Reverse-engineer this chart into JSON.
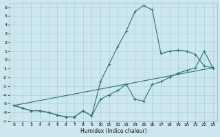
{
  "xlabel": "Humidex (Indice chaleur)",
  "bg_color": "#cce8ee",
  "line_color": "#2d6e6a",
  "grid_color": "#a8cfd6",
  "xlim": [
    -0.5,
    23.5
  ],
  "ylim": [
    -7,
    6.5
  ],
  "ytick_vals": [
    -7,
    -6,
    -5,
    -4,
    -3,
    -2,
    -1,
    0,
    1,
    2,
    3,
    4,
    5,
    6
  ],
  "ytick_labels": [
    "-7",
    "-6",
    "-5",
    "-4",
    "-3",
    "-2",
    "-1",
    "0",
    "1",
    "2",
    "3",
    "4",
    "5",
    "6"
  ],
  "xtick_vals": [
    0,
    1,
    2,
    3,
    4,
    5,
    6,
    7,
    8,
    9,
    10,
    11,
    12,
    13,
    14,
    15,
    16,
    17,
    18,
    19,
    20,
    21,
    22,
    23
  ],
  "line1_x": [
    0,
    1,
    2,
    3,
    4,
    5,
    6,
    7,
    8,
    9,
    10,
    11,
    12,
    13,
    14,
    15,
    16,
    17,
    18,
    19,
    20,
    21,
    22,
    23
  ],
  "line1_y": [
    -5.2,
    -5.5,
    -5.8,
    -5.8,
    -6.0,
    -6.3,
    -6.5,
    -6.5,
    -5.8,
    -6.4,
    -2.5,
    -0.5,
    1.5,
    3.3,
    5.5,
    6.2,
    5.7,
    0.7,
    1.0,
    1.1,
    1.0,
    0.6,
    -0.7,
    -0.9
  ],
  "line2_x": [
    0,
    1,
    2,
    3,
    4,
    5,
    6,
    7,
    8,
    9,
    10,
    11,
    12,
    13,
    14,
    15,
    16,
    17,
    18,
    19,
    20,
    21,
    22,
    23
  ],
  "line2_y": [
    -5.2,
    -5.5,
    -5.8,
    -5.8,
    -6.0,
    -6.3,
    -6.5,
    -6.5,
    -5.8,
    -6.4,
    -4.5,
    -4.0,
    -3.5,
    -2.8,
    -4.5,
    -4.7,
    -2.8,
    -2.5,
    -2.0,
    -1.5,
    -1.2,
    -0.9,
    1.0,
    -0.9
  ],
  "line3_x": [
    0,
    23
  ],
  "line3_y": [
    -5.2,
    -0.9
  ]
}
